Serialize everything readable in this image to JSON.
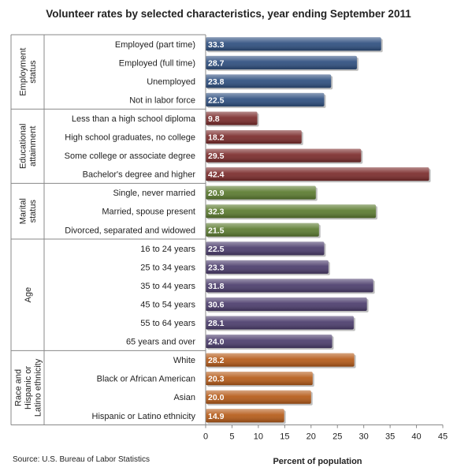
{
  "chart_data": {
    "type": "bar",
    "orientation": "horizontal",
    "title": "Volunteer rates by selected characteristics, year ending September 2011",
    "xlabel": "Percent of population",
    "ylabel": "",
    "xlim": [
      0,
      45
    ],
    "xticks": [
      0,
      5,
      10,
      15,
      20,
      25,
      30,
      35,
      40,
      45
    ],
    "grid": false,
    "legend": "none",
    "groups": [
      {
        "name": "Employment status",
        "color": "#2c4d7e",
        "categories": [
          "Employed (part time)",
          "Employed (full time)",
          "Unemployed",
          "Not in labor force"
        ],
        "values": [
          33.3,
          28.7,
          23.8,
          22.5
        ]
      },
      {
        "name": "Educational attainment",
        "color": "#7a2a2a",
        "categories": [
          "Less than a high school diploma",
          "High school graduates, no college",
          "Some college or associate  degree",
          "Bachelor's degree and higher"
        ],
        "values": [
          9.8,
          18.2,
          29.5,
          42.4
        ]
      },
      {
        "name": "Marital status",
        "color": "#5a7a2e",
        "categories": [
          "Single, never married",
          "Married, spouse present",
          "Divorced, separated and widowed"
        ],
        "values": [
          20.9,
          32.3,
          21.5
        ]
      },
      {
        "name": "Age",
        "color": "#4a3b6b",
        "categories": [
          "16 to 24 years",
          "25 to 34 years",
          "35 to 44 years",
          "45 to 54 years",
          "55 to 64 years",
          "65 years and over"
        ],
        "values": [
          22.5,
          23.3,
          31.8,
          30.6,
          28.1,
          24.0
        ]
      },
      {
        "name": "Race and Hispanic or Latino ethnicity",
        "color": "#b55a17",
        "categories": [
          "White",
          "Black or African American",
          "Asian",
          "Hispanic or Latino ethnicity"
        ],
        "values": [
          28.2,
          20.3,
          20.0,
          14.9
        ]
      }
    ],
    "group_label_lines": [
      [
        "Employment",
        "status"
      ],
      [
        "Educational",
        "attainment"
      ],
      [
        "Marital",
        "status"
      ],
      [
        "Age"
      ],
      [
        "Race and",
        "Hispanic or",
        "Latino ethnicity"
      ]
    ]
  },
  "source": "Source: U.S. Bureau of Labor Statistics"
}
